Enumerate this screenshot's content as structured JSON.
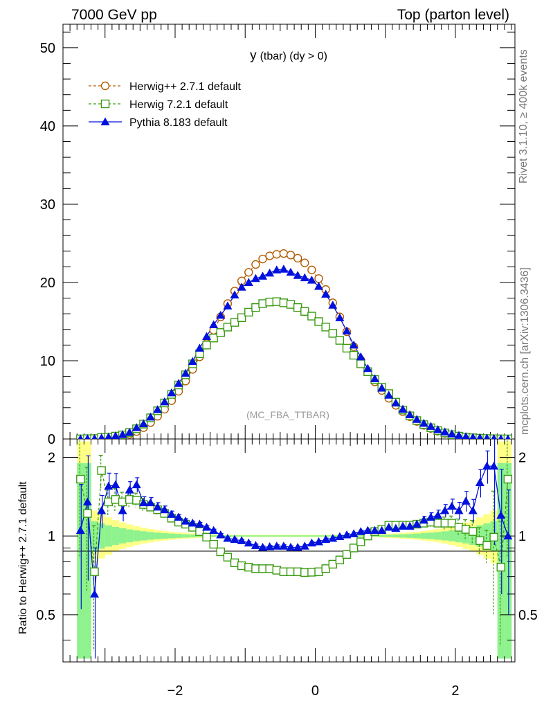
{
  "header": {
    "left": "7000 GeV pp",
    "right": "Top (parton level)"
  },
  "side": {
    "rivet": "Rivet 3.1.10, ≥ 400k events",
    "mcplots": "mcplots.cern.ch [arXiv:1306.3436]"
  },
  "plot": {
    "title_main": "y",
    "title_sub": "(tbar) (dy > 0)",
    "watermark": "(MC_FBA_TTBAR)",
    "ratio_ylabel": "Ratio to Herwig++ 2.7.1 default"
  },
  "legend": [
    {
      "label": "Herwig++ 2.7.1 default",
      "color": "#b35a00",
      "marker": "circle-open"
    },
    {
      "label": "Herwig 7.2.1 default",
      "color": "#3a9a12",
      "marker": "square-open"
    },
    {
      "label": "Pythia 8.183 default",
      "color": "#0011dd",
      "marker": "triangle-filled"
    }
  ],
  "chart_data": {
    "type": "line",
    "title": "y (tbar) (dy > 0)",
    "xlabel": "",
    "ylabel": "",
    "xlim": [
      -3.6,
      2.85
    ],
    "ylim": [
      0,
      53
    ],
    "ratio_ylim": [
      0.33,
      2.35
    ],
    "xticks": [
      "−2",
      "0",
      "2"
    ],
    "yticks": [
      "0",
      "10",
      "20",
      "30",
      "40",
      "50"
    ],
    "ratio_yticks": [
      "0.5",
      "1",
      "2"
    ],
    "x": [
      -3.35,
      -3.25,
      -3.15,
      -3.05,
      -2.95,
      -2.85,
      -2.75,
      -2.65,
      -2.55,
      -2.45,
      -2.35,
      -2.25,
      -2.15,
      -2.05,
      -1.95,
      -1.85,
      -1.75,
      -1.65,
      -1.55,
      -1.45,
      -1.35,
      -1.25,
      -1.15,
      -1.05,
      -0.95,
      -0.85,
      -0.75,
      -0.65,
      -0.55,
      -0.45,
      -0.35,
      -0.25,
      -0.15,
      -0.05,
      0.05,
      0.15,
      0.25,
      0.35,
      0.45,
      0.55,
      0.65,
      0.75,
      0.85,
      0.95,
      1.05,
      1.15,
      1.25,
      1.35,
      1.45,
      1.55,
      1.65,
      1.75,
      1.85,
      1.95,
      2.05,
      2.15,
      2.25,
      2.35,
      2.45,
      2.55,
      2.65,
      2.75
    ],
    "series": [
      {
        "name": "Herwig++ 2.7.1 default",
        "values": [
          0.008,
          0.03,
          0.06,
          0.11,
          0.17,
          0.26,
          0.38,
          0.6,
          0.95,
          1.45,
          2.1,
          2.9,
          3.8,
          4.9,
          6.1,
          7.4,
          8.9,
          10.5,
          12.2,
          13.9,
          15.6,
          17.3,
          18.9,
          20.2,
          21.3,
          22.3,
          23.0,
          23.4,
          23.6,
          23.7,
          23.5,
          23.1,
          22.5,
          21.6,
          20.5,
          19.1,
          17.4,
          15.6,
          13.7,
          11.8,
          10.1,
          8.6,
          7.3,
          6.2,
          5.2,
          4.3,
          3.5,
          2.85,
          2.25,
          1.75,
          1.35,
          1.0,
          0.72,
          0.5,
          0.34,
          0.22,
          0.14,
          0.09,
          0.05,
          0.025,
          0.01,
          0.004
        ]
      },
      {
        "name": "Herwig 7.2.1 default",
        "values": [
          0.013,
          0.037,
          0.044,
          0.2,
          0.23,
          0.36,
          0.52,
          0.83,
          1.3,
          1.9,
          2.7,
          3.6,
          4.6,
          5.7,
          6.9,
          8.2,
          9.6,
          10.9,
          12.0,
          12.9,
          13.6,
          14.3,
          14.9,
          15.5,
          16.2,
          16.8,
          17.3,
          17.5,
          17.55,
          17.4,
          17.2,
          16.8,
          16.3,
          15.7,
          15.0,
          14.3,
          13.5,
          12.6,
          11.6,
          10.7,
          9.6,
          8.6,
          7.6,
          6.6,
          5.8,
          4.7,
          3.7,
          2.95,
          2.35,
          1.83,
          1.43,
          1.07,
          0.77,
          0.54,
          0.36,
          0.24,
          0.15,
          0.085,
          0.05,
          0.026,
          0.01,
          0.005
        ]
      },
      {
        "name": "Pythia 8.183 default",
        "values": [
          0.011,
          0.04,
          0.05,
          0.14,
          0.25,
          0.38,
          0.56,
          0.85,
          1.45,
          1.95,
          2.8,
          3.75,
          4.75,
          5.9,
          7.1,
          8.4,
          9.9,
          11.6,
          13.1,
          14.6,
          15.8,
          17.0,
          18.4,
          19.4,
          20.0,
          20.5,
          20.8,
          21.2,
          21.6,
          21.7,
          21.3,
          20.9,
          20.6,
          20.3,
          19.5,
          18.5,
          17.1,
          15.5,
          13.8,
          12.0,
          10.5,
          9.0,
          7.7,
          6.5,
          5.6,
          4.6,
          3.8,
          3.1,
          2.5,
          2.0,
          1.6,
          1.2,
          0.9,
          0.65,
          0.45,
          0.3,
          0.2,
          0.15,
          0.1,
          0.05,
          0.012,
          0.005
        ]
      }
    ],
    "ratio_series": [
      {
        "name": "Herwig 7.2.1 default",
        "values": [
          1.65,
          1.22,
          0.73,
          1.78,
          1.35,
          1.38,
          1.35,
          1.38,
          1.37,
          1.32,
          1.29,
          1.26,
          1.22,
          1.17,
          1.13,
          1.11,
          1.08,
          1.04,
          0.99,
          0.93,
          0.87,
          0.83,
          0.79,
          0.77,
          0.76,
          0.75,
          0.75,
          0.75,
          0.74,
          0.73,
          0.73,
          0.73,
          0.725,
          0.727,
          0.73,
          0.75,
          0.78,
          0.81,
          0.85,
          0.9,
          0.95,
          1.0,
          1.04,
          1.06,
          1.1,
          1.1,
          1.1,
          1.1,
          1.11,
          1.12,
          1.13,
          1.12,
          1.12,
          1.12,
          1.08,
          1.06,
          1.04,
          0.96,
          0.92,
          0.99,
          0.76,
          1.65
        ]
      },
      {
        "name": "Pythia 8.183 default",
        "values": [
          1.05,
          1.35,
          0.6,
          1.25,
          1.55,
          1.57,
          1.25,
          1.5,
          1.57,
          1.34,
          1.34,
          1.29,
          1.26,
          1.21,
          1.18,
          1.14,
          1.12,
          1.11,
          1.08,
          1.05,
          1.01,
          0.98,
          0.97,
          0.96,
          0.94,
          0.92,
          0.905,
          0.91,
          0.915,
          0.915,
          0.906,
          0.905,
          0.915,
          0.94,
          0.95,
          0.97,
          0.98,
          0.995,
          1.01,
          1.02,
          1.04,
          1.05,
          1.05,
          1.05,
          1.08,
          1.07,
          1.09,
          1.09,
          1.11,
          1.15,
          1.18,
          1.2,
          1.25,
          1.3,
          1.25,
          1.36,
          1.25,
          1.6,
          1.85,
          1.85,
          1.2,
          1.0
        ]
      }
    ]
  }
}
